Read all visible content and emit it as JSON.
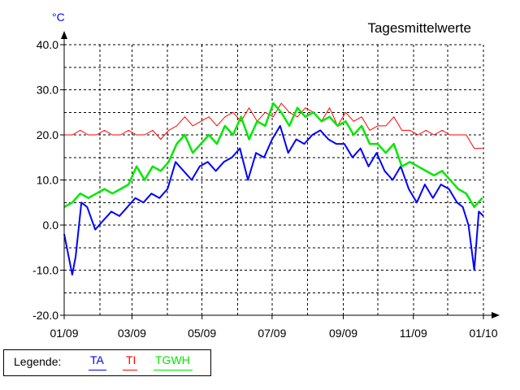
{
  "chart_data": {
    "type": "line",
    "title": "Tagesmittelwerte",
    "unit": "°C",
    "x_start": "2009-01-01",
    "x_end": "2010-01-01",
    "xticks": [
      "01/09",
      "03/09",
      "05/09",
      "07/09",
      "09/09",
      "11/09",
      "01/10"
    ],
    "yticks": [
      "40.0",
      "30.0",
      "20.0",
      "10.0",
      "0.0",
      "-10.0",
      "-20.0"
    ],
    "ylim": [
      -20,
      40
    ],
    "grid": true,
    "legend_label": "Legende:",
    "series": [
      {
        "name": "TA",
        "color": "#0000ff",
        "x": [
          "2009-01-01",
          "2009-01-08",
          "2009-01-11",
          "2009-01-16",
          "2009-01-21",
          "2009-01-28",
          "2009-02-04",
          "2009-02-11",
          "2009-02-18",
          "2009-02-25",
          "2009-03-04",
          "2009-03-11",
          "2009-03-18",
          "2009-03-25",
          "2009-04-01",
          "2009-04-08",
          "2009-04-15",
          "2009-04-22",
          "2009-04-29",
          "2009-05-06",
          "2009-05-13",
          "2009-05-20",
          "2009-05-27",
          "2009-06-03",
          "2009-06-10",
          "2009-06-17",
          "2009-06-24",
          "2009-07-01",
          "2009-07-08",
          "2009-07-15",
          "2009-07-22",
          "2009-07-29",
          "2009-08-05",
          "2009-08-12",
          "2009-08-19",
          "2009-08-26",
          "2009-09-02",
          "2009-09-09",
          "2009-09-16",
          "2009-09-23",
          "2009-09-30",
          "2009-10-07",
          "2009-10-14",
          "2009-10-21",
          "2009-10-28",
          "2009-11-04",
          "2009-11-11",
          "2009-11-18",
          "2009-11-25",
          "2009-12-02",
          "2009-12-09",
          "2009-12-14",
          "2009-12-19",
          "2009-12-24",
          "2009-12-28",
          "2010-01-01"
        ],
        "values": [
          -2,
          -11,
          -7,
          5,
          4,
          -1,
          1,
          3,
          2,
          4,
          6,
          5,
          7,
          6,
          8,
          14,
          12,
          10,
          13,
          14,
          12,
          14,
          15,
          17,
          10,
          16,
          15,
          19,
          22,
          16,
          19,
          18,
          20,
          21,
          19,
          18,
          18,
          15,
          17,
          13,
          16,
          12,
          10,
          13,
          8,
          5,
          9,
          6,
          9,
          8,
          5,
          4,
          0,
          -10,
          3,
          2
        ]
      },
      {
        "name": "TI",
        "color": "#ff0000",
        "x": [
          "2009-01-01",
          "2009-01-08",
          "2009-01-15",
          "2009-01-22",
          "2009-01-29",
          "2009-02-05",
          "2009-02-12",
          "2009-02-19",
          "2009-02-26",
          "2009-03-05",
          "2009-03-12",
          "2009-03-19",
          "2009-03-26",
          "2009-04-02",
          "2009-04-09",
          "2009-04-16",
          "2009-04-23",
          "2009-04-30",
          "2009-05-07",
          "2009-05-14",
          "2009-05-21",
          "2009-05-28",
          "2009-06-04",
          "2009-06-11",
          "2009-06-18",
          "2009-06-25",
          "2009-07-02",
          "2009-07-09",
          "2009-07-16",
          "2009-07-23",
          "2009-07-30",
          "2009-08-06",
          "2009-08-13",
          "2009-08-20",
          "2009-08-27",
          "2009-09-03",
          "2009-09-10",
          "2009-09-17",
          "2009-09-24",
          "2009-10-01",
          "2009-10-08",
          "2009-10-15",
          "2009-10-22",
          "2009-10-29",
          "2009-11-05",
          "2009-11-12",
          "2009-11-19",
          "2009-11-26",
          "2009-12-03",
          "2009-12-10",
          "2009-12-17",
          "2009-12-24",
          "2009-12-31"
        ],
        "values": [
          20,
          20,
          21,
          20,
          20,
          21,
          20,
          20,
          21,
          20,
          20,
          21,
          19,
          21,
          22,
          24,
          22,
          23,
          24,
          22,
          24,
          25,
          23,
          26,
          23,
          25,
          24,
          27,
          25,
          24,
          26,
          25,
          23,
          26,
          22,
          25,
          23,
          24,
          21,
          22,
          22,
          24,
          21,
          21,
          20,
          21,
          20,
          21,
          20,
          20,
          20,
          17,
          17
        ]
      },
      {
        "name": "TGWH",
        "color": "#00e800",
        "x": [
          "2009-01-01",
          "2009-01-08",
          "2009-01-15",
          "2009-01-22",
          "2009-01-29",
          "2009-02-05",
          "2009-02-12",
          "2009-02-19",
          "2009-02-26",
          "2009-03-05",
          "2009-03-12",
          "2009-03-19",
          "2009-03-26",
          "2009-04-02",
          "2009-04-09",
          "2009-04-16",
          "2009-04-23",
          "2009-04-30",
          "2009-05-07",
          "2009-05-14",
          "2009-05-21",
          "2009-05-28",
          "2009-06-04",
          "2009-06-11",
          "2009-06-18",
          "2009-06-25",
          "2009-07-02",
          "2009-07-09",
          "2009-07-16",
          "2009-07-23",
          "2009-07-30",
          "2009-08-06",
          "2009-08-13",
          "2009-08-20",
          "2009-08-27",
          "2009-09-03",
          "2009-09-10",
          "2009-09-17",
          "2009-09-24",
          "2009-10-01",
          "2009-10-08",
          "2009-10-15",
          "2009-10-22",
          "2009-10-29",
          "2009-11-05",
          "2009-11-12",
          "2009-11-19",
          "2009-11-26",
          "2009-12-03",
          "2009-12-10",
          "2009-12-17",
          "2009-12-24",
          "2009-12-31"
        ],
        "values": [
          4,
          5,
          7,
          6,
          7,
          8,
          7,
          8,
          9,
          13,
          10,
          13,
          12,
          14,
          18,
          20,
          16,
          18,
          20,
          18,
          22,
          20,
          24,
          19,
          23,
          22,
          27,
          25,
          22,
          26,
          24,
          25,
          23,
          24,
          22,
          23,
          20,
          22,
          18,
          18,
          16,
          18,
          13,
          14,
          13,
          12,
          11,
          12,
          10,
          8,
          7,
          4,
          6
        ]
      }
    ]
  }
}
